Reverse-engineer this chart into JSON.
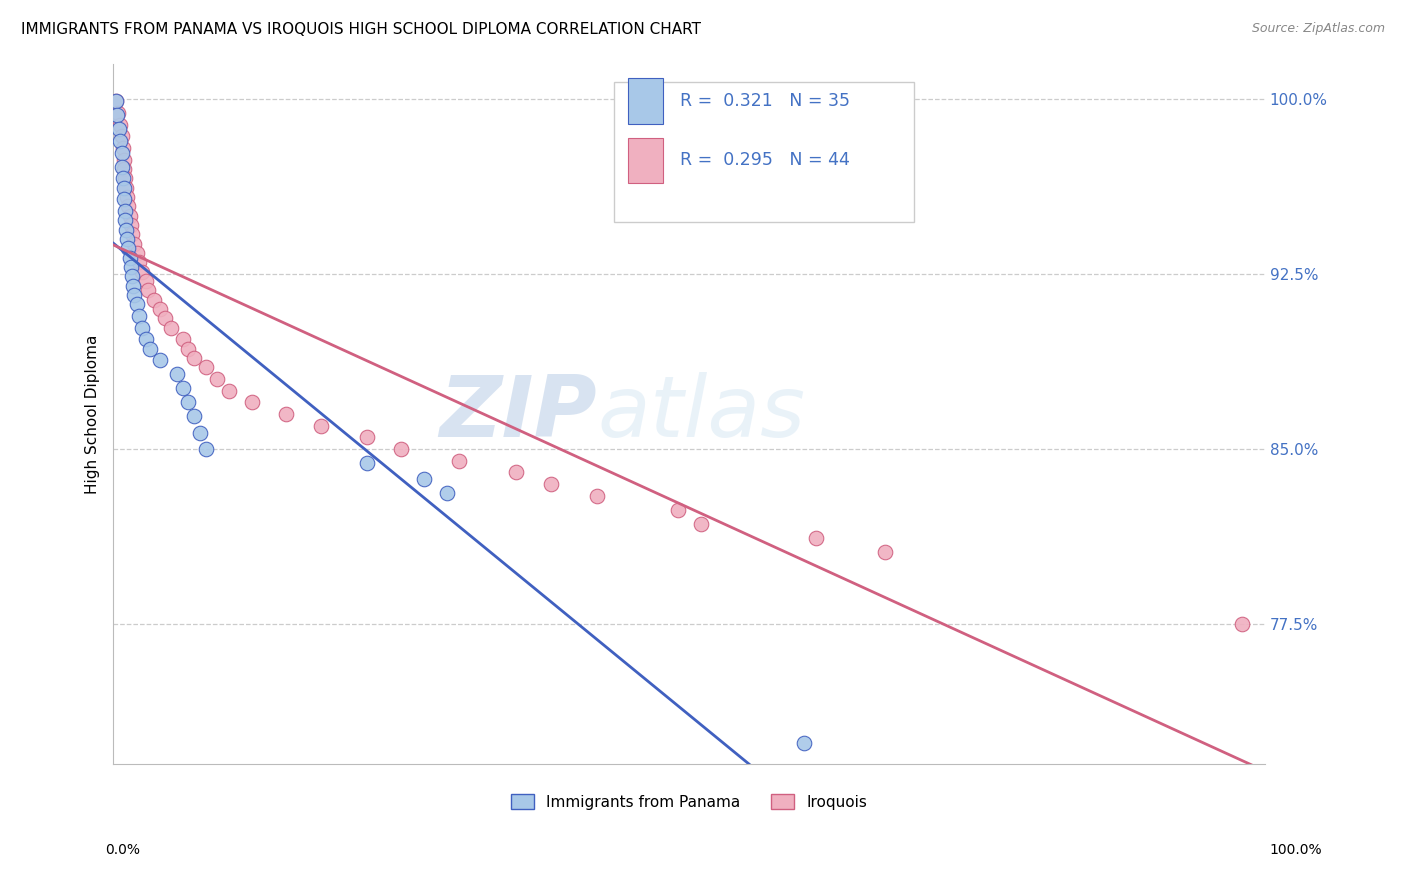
{
  "title": "IMMIGRANTS FROM PANAMA VS IROQUOIS HIGH SCHOOL DIPLOMA CORRELATION CHART",
  "source": "Source: ZipAtlas.com",
  "ylabel": "High School Diploma",
  "ytick_labels": [
    "100.0%",
    "92.5%",
    "85.0%",
    "77.5%"
  ],
  "ytick_values": [
    1.0,
    0.925,
    0.85,
    0.775
  ],
  "xmin": 0.0,
  "xmax": 1.0,
  "ymin": 0.715,
  "ymax": 1.015,
  "legend_line1": "R =  0.321   N = 35",
  "legend_line2": "R =  0.295   N = 44",
  "color_blue": "#a8c8e8",
  "color_pink": "#f0b0c0",
  "line_blue": "#4060c0",
  "line_pink": "#d06080",
  "blue_x": [
    0.002,
    0.003,
    0.005,
    0.006,
    0.007,
    0.007,
    0.008,
    0.009,
    0.009,
    0.01,
    0.01,
    0.011,
    0.012,
    0.013,
    0.014,
    0.015,
    0.016,
    0.017,
    0.018,
    0.02,
    0.022,
    0.025,
    0.028,
    0.032,
    0.04,
    0.055,
    0.06,
    0.065,
    0.07,
    0.075,
    0.08,
    0.22,
    0.27,
    0.29,
    0.6
  ],
  "blue_y": [
    0.999,
    0.993,
    0.987,
    0.982,
    0.977,
    0.971,
    0.966,
    0.962,
    0.957,
    0.952,
    0.948,
    0.944,
    0.94,
    0.936,
    0.932,
    0.928,
    0.924,
    0.92,
    0.916,
    0.912,
    0.907,
    0.902,
    0.897,
    0.893,
    0.888,
    0.882,
    0.876,
    0.87,
    0.864,
    0.857,
    0.85,
    0.844,
    0.837,
    0.831,
    0.724
  ],
  "pink_x": [
    0.002,
    0.004,
    0.006,
    0.007,
    0.008,
    0.009,
    0.009,
    0.01,
    0.011,
    0.012,
    0.013,
    0.014,
    0.015,
    0.016,
    0.018,
    0.02,
    0.022,
    0.025,
    0.028,
    0.03,
    0.035,
    0.04,
    0.045,
    0.05,
    0.06,
    0.065,
    0.07,
    0.08,
    0.09,
    0.1,
    0.12,
    0.15,
    0.18,
    0.22,
    0.25,
    0.3,
    0.35,
    0.38,
    0.42,
    0.49,
    0.51,
    0.61,
    0.67,
    0.98
  ],
  "pink_y": [
    0.999,
    0.994,
    0.989,
    0.984,
    0.979,
    0.974,
    0.97,
    0.966,
    0.962,
    0.958,
    0.954,
    0.95,
    0.946,
    0.942,
    0.938,
    0.934,
    0.93,
    0.926,
    0.922,
    0.918,
    0.914,
    0.91,
    0.906,
    0.902,
    0.897,
    0.893,
    0.889,
    0.885,
    0.88,
    0.875,
    0.87,
    0.865,
    0.86,
    0.855,
    0.85,
    0.845,
    0.84,
    0.835,
    0.83,
    0.824,
    0.818,
    0.812,
    0.806,
    0.775
  ],
  "watermark_zip": "ZIP",
  "watermark_atlas": "atlas",
  "title_fontsize": 11,
  "axis_label_color": "#4472c4"
}
